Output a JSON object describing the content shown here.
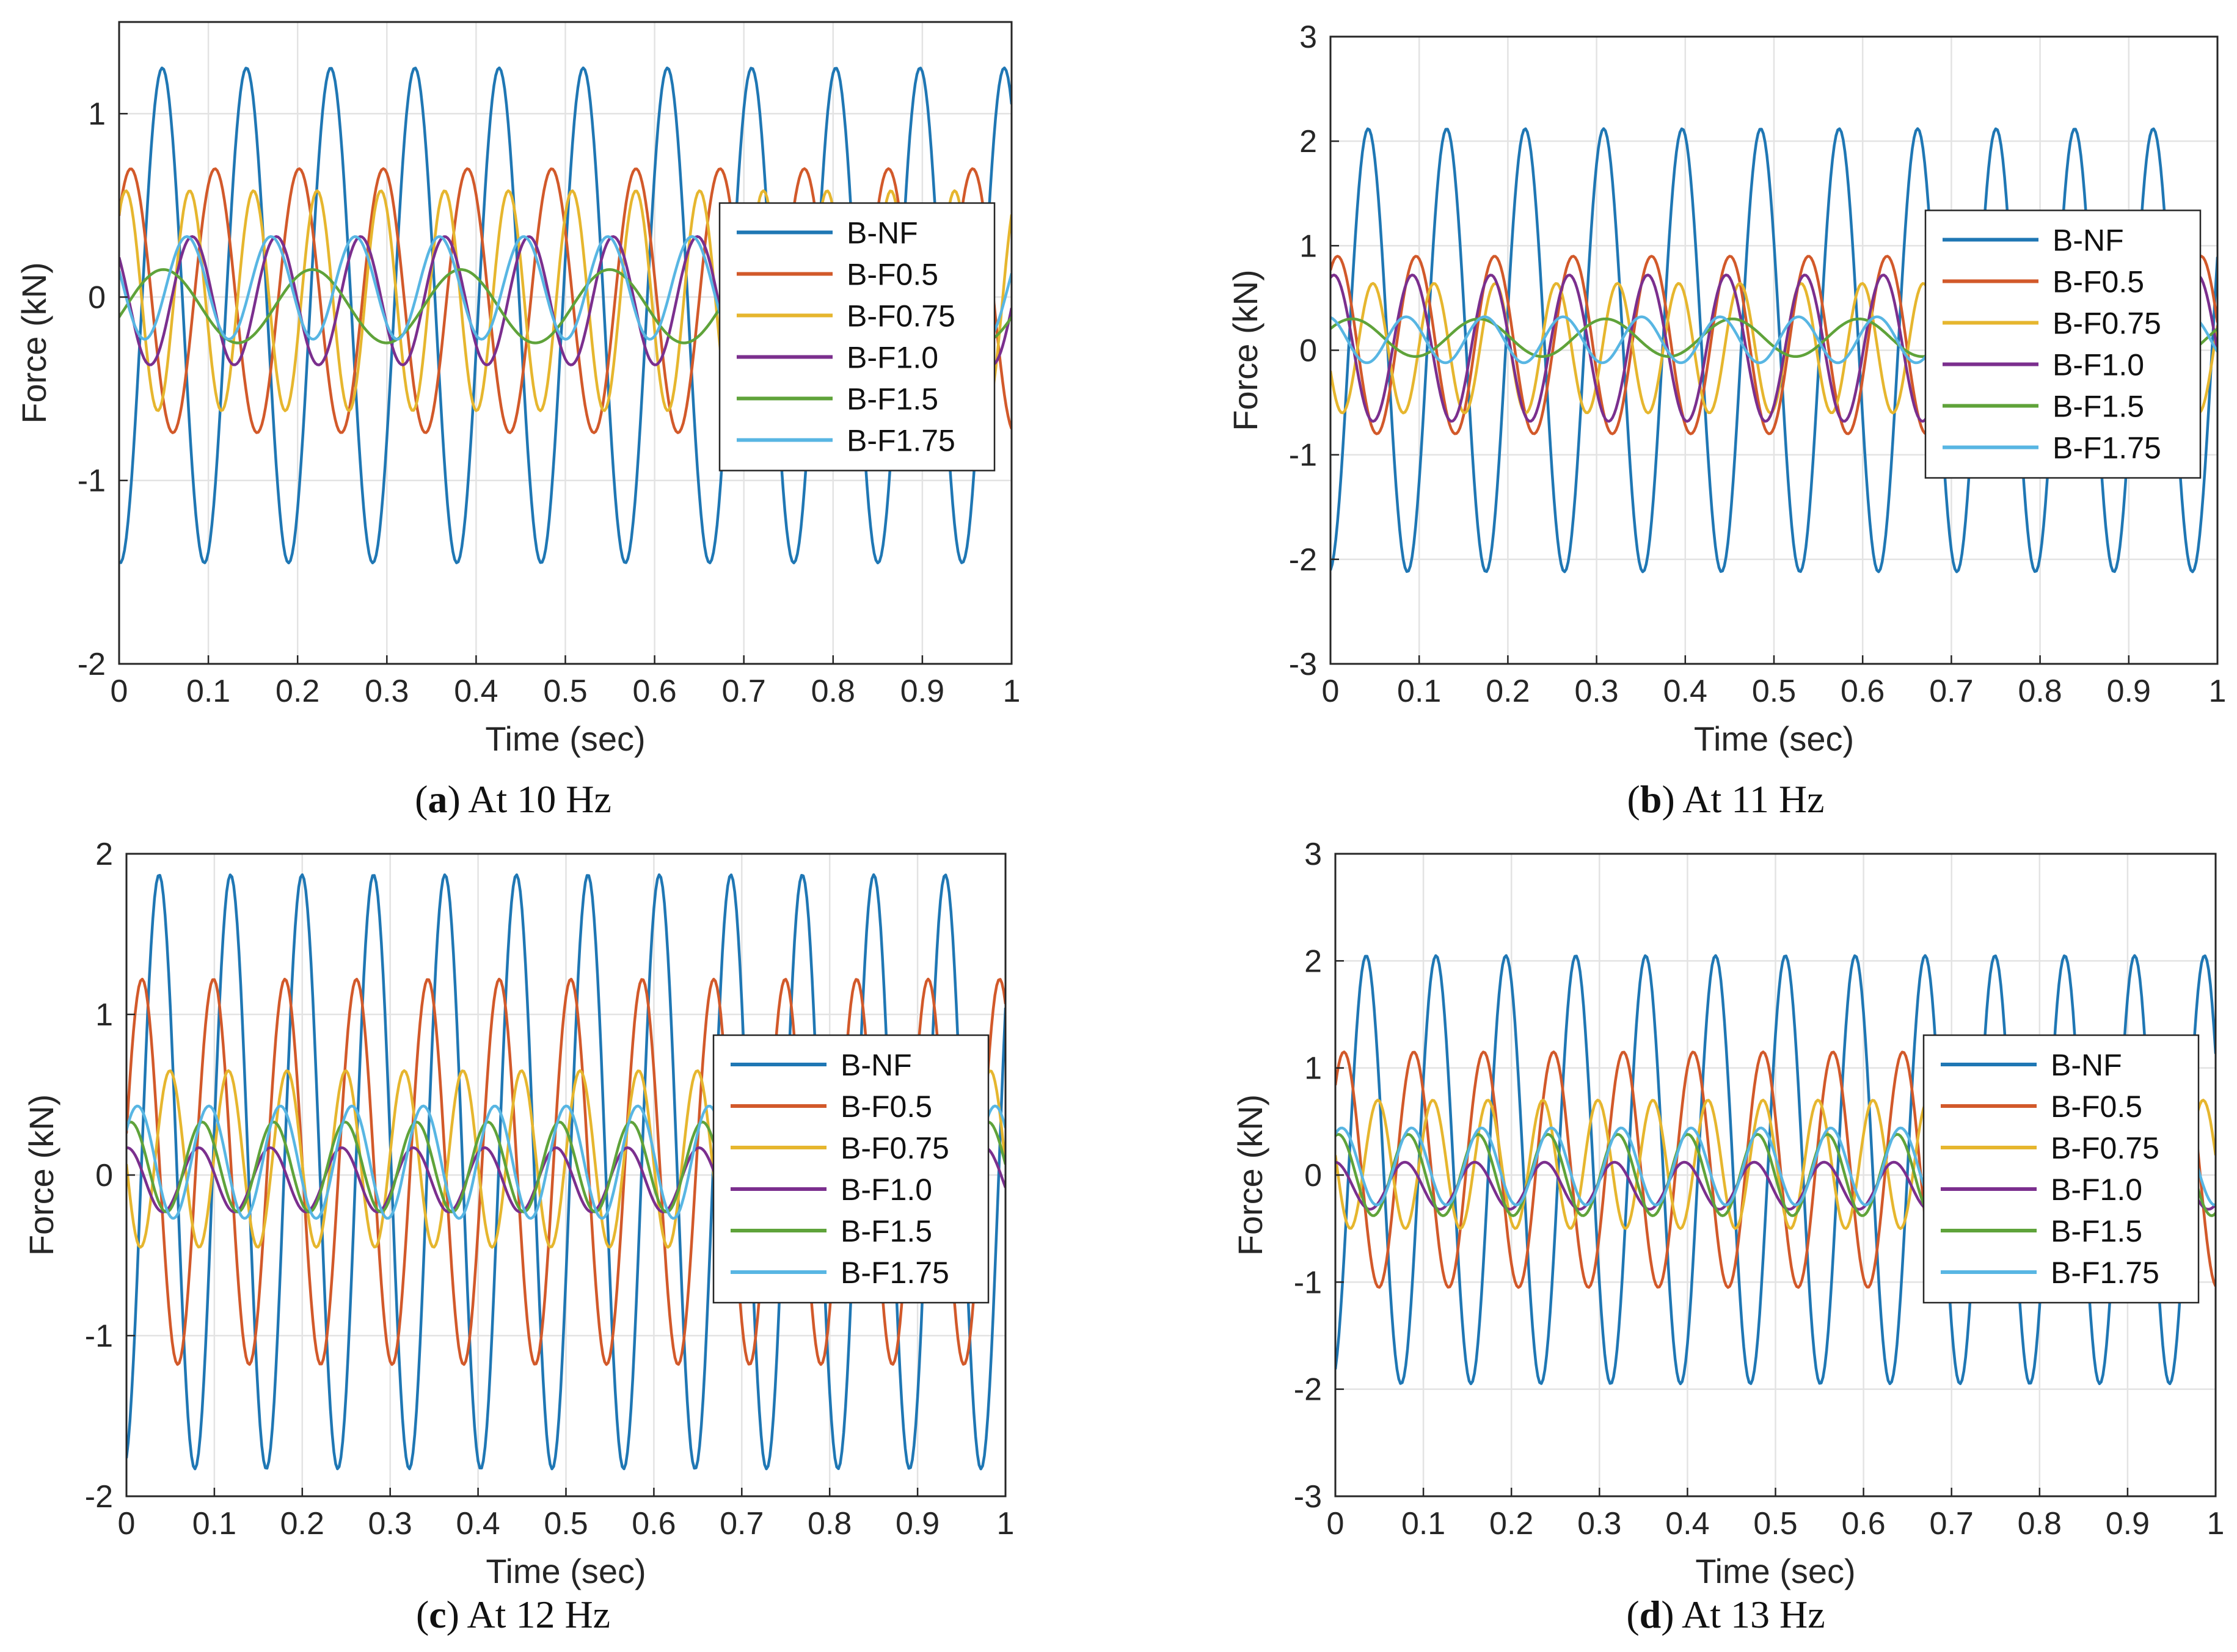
{
  "colors": {
    "B-NF": "#1f77b4",
    "B-F0.5": "#d2592a",
    "B-F0.75": "#e6b62e",
    "B-F1.0": "#7b2f8e",
    "B-F1.5": "#5fa33a",
    "B-F1.75": "#58b6e3"
  },
  "chart_data": [
    {
      "type": "line",
      "panel_label": "a",
      "caption": "At 10 Hz",
      "xlabel": "Time (sec)",
      "ylabel": "Force (kN)",
      "xlim": [
        0,
        1
      ],
      "ylim": [
        -2,
        1.5
      ],
      "xticks": [
        0,
        0.1,
        0.2,
        0.3,
        0.4,
        0.5,
        0.6,
        0.7,
        0.8,
        0.9,
        1
      ],
      "xtick_labels": [
        "0",
        "0.1",
        "0.2",
        "0.3",
        "0.4",
        "0.5",
        "0.6",
        "0.7",
        "0.8",
        "0.9",
        "1"
      ],
      "yticks": [
        -2,
        -1,
        0,
        1
      ],
      "ytick_labels": [
        "-2",
        "-1",
        "0",
        "1"
      ],
      "grid": true,
      "legend_position": "center-right",
      "sampling": {
        "x_start": 0,
        "x_end": 1,
        "step": 0.002
      },
      "series": [
        {
          "name": "B-NF",
          "amplitude": 1.35,
          "offset": -0.1,
          "frequency": 10.6,
          "phase": -1.65
        },
        {
          "name": "B-F0.5",
          "amplitude": 0.72,
          "offset": -0.02,
          "frequency": 10.6,
          "phase": 0.7
        },
        {
          "name": "B-F0.75",
          "amplitude": 0.6,
          "offset": -0.02,
          "frequency": 14.0,
          "phase": 0.9
        },
        {
          "name": "B-F1.0",
          "amplitude": 0.35,
          "offset": -0.02,
          "frequency": 10.6,
          "phase": 2.4
        },
        {
          "name": "B-F1.5",
          "amplitude": 0.2,
          "offset": -0.05,
          "frequency": 6.0,
          "phase": -0.3
        },
        {
          "name": "B-F1.75",
          "amplitude": 0.28,
          "offset": 0.05,
          "frequency": 10.6,
          "phase": 2.8
        }
      ]
    },
    {
      "type": "line",
      "panel_label": "b",
      "caption": "At 11 Hz",
      "xlabel": "Time (sec)",
      "ylabel": "Force (kN)",
      "xlim": [
        0,
        1
      ],
      "ylim": [
        -3,
        3
      ],
      "xticks": [
        0,
        0.1,
        0.2,
        0.3,
        0.4,
        0.5,
        0.6,
        0.7,
        0.8,
        0.9,
        1
      ],
      "xtick_labels": [
        "0",
        "0.1",
        "0.2",
        "0.3",
        "0.4",
        "0.5",
        "0.6",
        "0.7",
        "0.8",
        "0.9",
        "1"
      ],
      "yticks": [
        -3,
        -2,
        -1,
        0,
        1,
        2,
        3
      ],
      "ytick_labels": [
        "-3",
        "-2",
        "-1",
        "0",
        "1",
        "2",
        "3"
      ],
      "grid": true,
      "legend_position": "center-right",
      "sampling": {
        "x_start": 0,
        "x_end": 1,
        "step": 0.002
      },
      "series": [
        {
          "name": "B-NF",
          "amplitude": 2.12,
          "offset": 0,
          "frequency": 11.3,
          "phase": -1.45
        },
        {
          "name": "B-F0.5",
          "amplitude": 0.85,
          "offset": 0.05,
          "frequency": 11.3,
          "phase": 1.0
        },
        {
          "name": "B-F0.75",
          "amplitude": 0.62,
          "offset": 0.02,
          "frequency": 14.5,
          "phase": 3.5
        },
        {
          "name": "B-F1.0",
          "amplitude": 0.7,
          "offset": 0.02,
          "frequency": 11.3,
          "phase": 1.3
        },
        {
          "name": "B-F1.5",
          "amplitude": 0.18,
          "offset": 0.12,
          "frequency": 7.0,
          "phase": 0.5
        },
        {
          "name": "B-F1.75",
          "amplitude": 0.22,
          "offset": 0.1,
          "frequency": 11.3,
          "phase": 1.8
        }
      ]
    },
    {
      "type": "line",
      "panel_label": "c",
      "caption": "At 12 Hz",
      "xlabel": "Time (sec)",
      "ylabel": "Force (kN)",
      "xlim": [
        0,
        1
      ],
      "ylim": [
        -2,
        2
      ],
      "xticks": [
        0,
        0.1,
        0.2,
        0.3,
        0.4,
        0.5,
        0.6,
        0.7,
        0.8,
        0.9,
        1
      ],
      "xtick_labels": [
        "0",
        "0.1",
        "0.2",
        "0.3",
        "0.4",
        "0.5",
        "0.6",
        "0.7",
        "0.8",
        "0.9",
        "1"
      ],
      "yticks": [
        -2,
        -1,
        0,
        1,
        2
      ],
      "ytick_labels": [
        "-2",
        "-1",
        "0",
        "1",
        "2"
      ],
      "grid": true,
      "legend_position": "center-right",
      "sampling": {
        "x_start": 0,
        "x_end": 1,
        "step": 0.002
      },
      "series": [
        {
          "name": "B-NF",
          "amplitude": 1.85,
          "offset": 0.02,
          "frequency": 12.3,
          "phase": -1.3
        },
        {
          "name": "B-F0.5",
          "amplitude": 1.2,
          "offset": 0.02,
          "frequency": 12.3,
          "phase": 0.2
        },
        {
          "name": "B-F0.75",
          "amplitude": 0.55,
          "offset": 0.1,
          "frequency": 15.0,
          "phase": 3.2
        },
        {
          "name": "B-F1.0",
          "amplitude": 0.2,
          "offset": -0.03,
          "frequency": 12.3,
          "phase": 1.5
        },
        {
          "name": "B-F1.5",
          "amplitude": 0.28,
          "offset": 0.05,
          "frequency": 12.3,
          "phase": 1.2
        },
        {
          "name": "B-F1.75",
          "amplitude": 0.35,
          "offset": 0.08,
          "frequency": 12.3,
          "phase": 0.6
        }
      ]
    },
    {
      "type": "line",
      "panel_label": "d",
      "caption": "At 13 Hz",
      "xlabel": "Time (sec)",
      "ylabel": "Force (kN)",
      "xlim": [
        0,
        1
      ],
      "ylim": [
        -3,
        3
      ],
      "xticks": [
        0,
        0.1,
        0.2,
        0.3,
        0.4,
        0.5,
        0.6,
        0.7,
        0.8,
        0.9,
        1
      ],
      "xtick_labels": [
        "0",
        "0.1",
        "0.2",
        "0.3",
        "0.4",
        "0.5",
        "0.6",
        "0.7",
        "0.8",
        "0.9",
        "1"
      ],
      "yticks": [
        -3,
        -2,
        -1,
        0,
        1,
        2,
        3
      ],
      "ytick_labels": [
        "-3",
        "-2",
        "-1",
        "0",
        "1",
        "2",
        "3"
      ],
      "grid": true,
      "legend_position": "center-right",
      "sampling": {
        "x_start": 0,
        "x_end": 1,
        "step": 0.002
      },
      "series": [
        {
          "name": "B-NF",
          "amplitude": 2.0,
          "offset": 0.05,
          "frequency": 12.6,
          "phase": -1.2
        },
        {
          "name": "B-F0.5",
          "amplitude": 1.1,
          "offset": 0.05,
          "frequency": 12.6,
          "phase": 0.8
        },
        {
          "name": "B-F0.75",
          "amplitude": 0.6,
          "offset": 0.1,
          "frequency": 16.0,
          "phase": 3.0
        },
        {
          "name": "B-F1.0",
          "amplitude": 0.22,
          "offset": -0.1,
          "frequency": 12.6,
          "phase": 1.6
        },
        {
          "name": "B-F1.5",
          "amplitude": 0.38,
          "offset": 0.0,
          "frequency": 12.6,
          "phase": 1.3
        },
        {
          "name": "B-F1.75",
          "amplitude": 0.36,
          "offset": 0.08,
          "frequency": 12.6,
          "phase": 1.0
        }
      ]
    }
  ]
}
